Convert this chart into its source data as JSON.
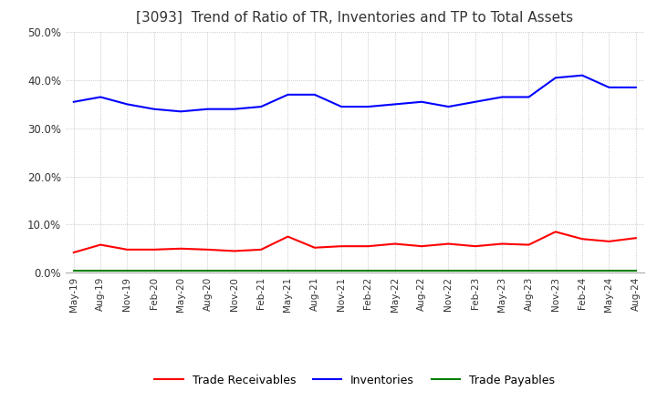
{
  "title": "[3093]  Trend of Ratio of TR, Inventories and TP to Total Assets",
  "xlabels": [
    "May-19",
    "Aug-19",
    "Nov-19",
    "Feb-20",
    "May-20",
    "Aug-20",
    "Nov-20",
    "Feb-21",
    "May-21",
    "Aug-21",
    "Nov-21",
    "Feb-22",
    "May-22",
    "Aug-22",
    "Nov-22",
    "Feb-23",
    "May-23",
    "Aug-23",
    "Nov-23",
    "Feb-24",
    "May-24",
    "Aug-24"
  ],
  "trade_receivables": [
    4.2,
    5.8,
    4.8,
    4.8,
    5.0,
    4.8,
    4.5,
    4.8,
    7.5,
    5.2,
    5.5,
    5.5,
    6.0,
    5.5,
    6.0,
    5.5,
    6.0,
    5.8,
    8.5,
    7.0,
    6.5,
    7.2
  ],
  "inventories": [
    35.5,
    36.5,
    35.0,
    34.0,
    33.5,
    34.0,
    34.0,
    34.5,
    37.0,
    37.0,
    34.5,
    34.5,
    35.0,
    35.5,
    34.5,
    35.5,
    36.5,
    36.5,
    40.5,
    41.0,
    38.5,
    38.5
  ],
  "trade_payables": [
    0.5,
    0.5,
    0.5,
    0.5,
    0.5,
    0.5,
    0.5,
    0.5,
    0.5,
    0.5,
    0.5,
    0.5,
    0.5,
    0.5,
    0.5,
    0.5,
    0.5,
    0.5,
    0.5,
    0.5,
    0.5,
    0.5
  ],
  "tr_color": "#ff0000",
  "inv_color": "#0000ff",
  "tp_color": "#008000",
  "ylim": [
    0,
    50
  ],
  "yticks": [
    0,
    10,
    20,
    30,
    40,
    50
  ],
  "background_color": "#ffffff",
  "grid_color": "#aaaaaa",
  "title_fontsize": 11,
  "legend_labels": [
    "Trade Receivables",
    "Inventories",
    "Trade Payables"
  ]
}
